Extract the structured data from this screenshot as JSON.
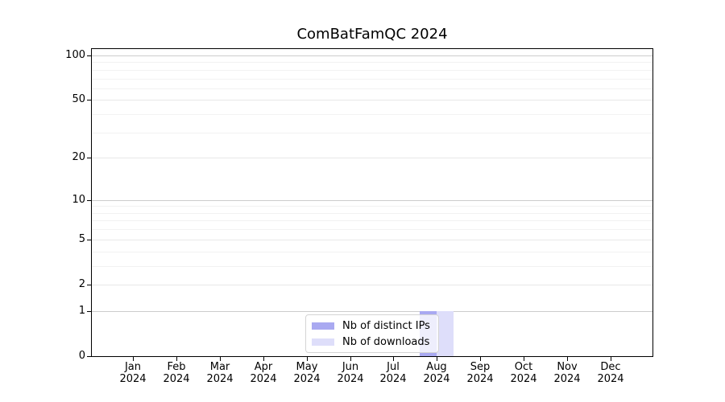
{
  "title": "ComBatFamQC 2024",
  "chart_data": {
    "type": "bar",
    "title": "ComBatFamQC 2024",
    "categories": [
      "Jan 2024",
      "Feb 2024",
      "Mar 2024",
      "Apr 2024",
      "May 2024",
      "Jun 2024",
      "Jul 2024",
      "Aug 2024",
      "Sep 2024",
      "Oct 2024",
      "Nov 2024",
      "Dec 2024"
    ],
    "series": [
      {
        "name": "Nb of distinct IPs",
        "color": "#a9a9f1",
        "values": [
          0,
          0,
          0,
          0,
          0,
          0,
          0,
          1,
          0,
          0,
          0,
          0
        ]
      },
      {
        "name": "Nb of downloads",
        "color": "#dedefa",
        "values": [
          0,
          0,
          0,
          0,
          0,
          0,
          0,
          1,
          0,
          0,
          0,
          0
        ]
      }
    ],
    "xlabel": "",
    "ylabel": "",
    "yscale": "log1p",
    "ylim": [
      0,
      112
    ],
    "y_tick_values": [
      0,
      1,
      2,
      5,
      10,
      20,
      50,
      100
    ],
    "y_tick_labels": [
      "0",
      "1",
      "2",
      "5",
      "10",
      "20",
      "50",
      "100"
    ],
    "y_minor_tick_values": [
      3,
      4,
      6,
      7,
      8,
      9,
      30,
      40,
      60,
      70,
      80,
      90
    ],
    "grid": "horizontal",
    "legend_position": "inside-bottom-center"
  },
  "legend": {
    "items": [
      {
        "label": "Nb of distinct IPs",
        "color": "#a9a9f1"
      },
      {
        "label": "Nb of downloads",
        "color": "#dedefa"
      }
    ]
  },
  "colors": {
    "background": "#ffffff",
    "spine": "#000000",
    "text": "#000000",
    "grid_major": "#cccccc",
    "grid_mid": "#e8e8e8",
    "grid_minor": "#f2f2f2",
    "legend_border": "#d4d4d4"
  }
}
